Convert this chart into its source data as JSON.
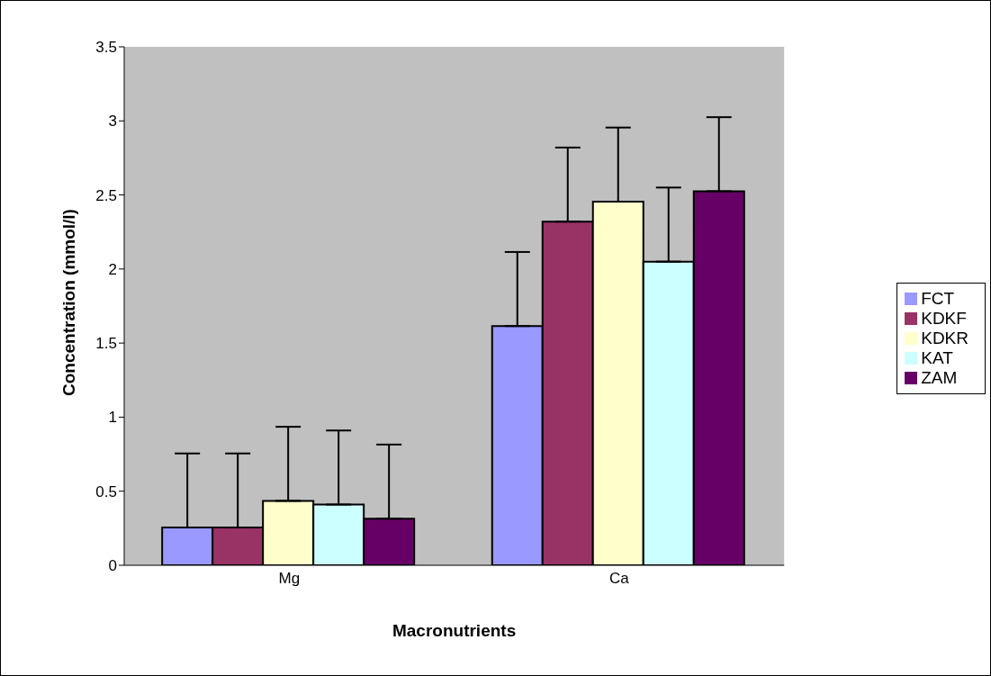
{
  "chart_data": {
    "type": "bar",
    "xlabel": "Macronutrients",
    "ylabel": "Concentration (mmol/l)",
    "categories": [
      "Mg",
      "Ca"
    ],
    "series": [
      {
        "name": "FCT",
        "color": "#9999ff",
        "values": [
          0.255,
          1.615
        ],
        "errors": [
          [
            0.255,
            0.755
          ],
          [
            1.615,
            2.115
          ]
        ]
      },
      {
        "name": "KDKF",
        "color": "#993366",
        "values": [
          0.255,
          2.32
        ],
        "errors": [
          [
            0.255,
            0.755
          ],
          [
            2.32,
            2.82
          ]
        ]
      },
      {
        "name": "KDKR",
        "color": "#ffffcc",
        "values": [
          0.435,
          2.455
        ],
        "errors": [
          [
            0.435,
            0.935
          ],
          [
            2.455,
            2.955
          ]
        ]
      },
      {
        "name": "KAT",
        "color": "#ccffff",
        "values": [
          0.41,
          2.05
        ],
        "errors": [
          [
            0.41,
            0.91
          ],
          [
            2.05,
            2.55
          ]
        ]
      },
      {
        "name": "ZAM",
        "color": "#660066",
        "values": [
          0.315,
          2.525
        ],
        "errors": [
          [
            0.315,
            0.815
          ],
          [
            2.525,
            3.025
          ]
        ]
      }
    ],
    "ylim": [
      0,
      3.5
    ],
    "yticks": [
      0,
      0.5,
      1,
      1.5,
      2,
      2.5,
      3,
      3.5
    ],
    "grid": false,
    "legend": "right"
  }
}
